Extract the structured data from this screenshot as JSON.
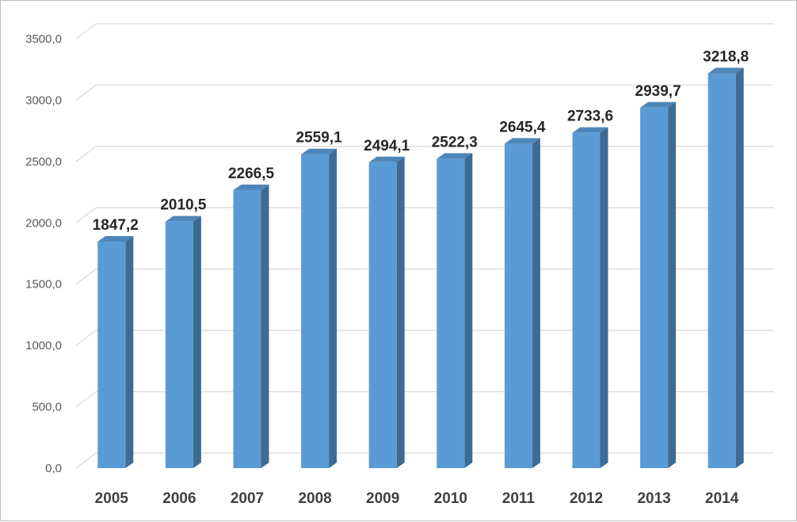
{
  "chart_data": {
    "type": "bar",
    "style": "3d-column",
    "categories": [
      "2005",
      "2006",
      "2007",
      "2008",
      "2009",
      "2010",
      "2011",
      "2012",
      "2013",
      "2014"
    ],
    "values": [
      1847.2,
      2010.5,
      2266.5,
      2559.1,
      2494.1,
      2522.3,
      2645.4,
      2733.6,
      2939.7,
      3218.8
    ],
    "value_labels": [
      "1847,2",
      "2010,5",
      "2266,5",
      "2559,1",
      "2494,1",
      "2522,3",
      "2645,4",
      "2733,6",
      "2939,7",
      "3218,8"
    ],
    "yticks": [
      0,
      500,
      1000,
      1500,
      2000,
      2500,
      3000,
      3500
    ],
    "ytick_labels": [
      "0,0",
      "500,0",
      "1000,0",
      "1500,0",
      "2000,0",
      "2500,0",
      "3000,0",
      "3500,0"
    ],
    "ylim": [
      0,
      3500
    ],
    "grid": true,
    "title": "",
    "xlabel": "",
    "ylabel": "",
    "colors": {
      "bar_front": "#5b9bd5",
      "bar_side": "#3e6b93",
      "bar_top": "#4f86b9",
      "grid": "#d9d9d9"
    }
  }
}
